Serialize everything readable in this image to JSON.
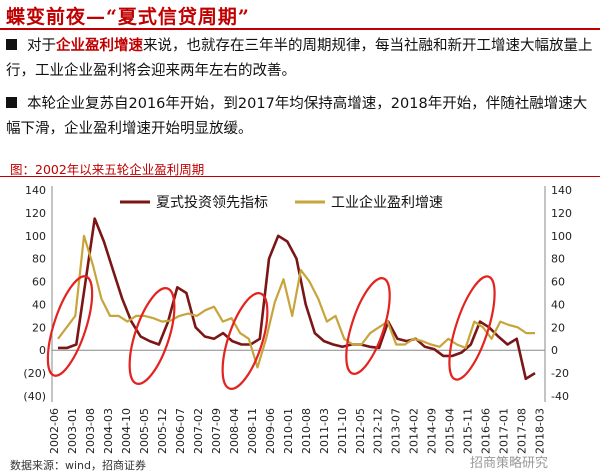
{
  "header": {
    "title": "蝶变前夜—“夏式信贷周期”"
  },
  "bullets": [
    {
      "segments": [
        {
          "text": "对于",
          "highlight": false
        },
        {
          "text": "企业盈利增速",
          "highlight": true
        },
        {
          "text": "来说，也就存在三年半的周期规律，每当社融和新开工增速大幅放量上行，工业企业盈利将会迎来两年左右的改善。",
          "highlight": false
        }
      ]
    },
    {
      "segments": [
        {
          "text": "本轮企业复苏自2016年开始，到2017年均保持高增速，2018年开始，伴随社融增速大幅下滑，企业盈利增速开始明显放缓。",
          "highlight": false
        }
      ]
    }
  ],
  "chart_caption": "图：2002年以来五轮企业盈利周期",
  "source": "数据来源：wind，招商证券",
  "watermark": "招商策略研究",
  "colors": {
    "accent": "#c00000",
    "series_xia": "#7b1616",
    "series_profit": "#c8a43c",
    "ellipse": "#e3231f"
  },
  "chart_data": {
    "type": "line",
    "title": "",
    "xlabel": "",
    "ylabel": "",
    "left_axis": {
      "range": [
        -40,
        140
      ],
      "tick_labels": [
        "140",
        "120",
        "100",
        "80",
        "60",
        "40",
        "20",
        "0",
        "(20)",
        "(40)"
      ]
    },
    "right_axis": {
      "range": [
        -40,
        140
      ],
      "tick_labels": [
        "140",
        "120",
        "100",
        "80",
        "60",
        "40",
        "20",
        "0",
        "-20",
        "-40"
      ]
    },
    "x_tick_labels": [
      "2002-06",
      "2003-01",
      "2003-08",
      "2004-03",
      "2004-10",
      "2005-05",
      "2005-12",
      "2006-07",
      "2007-02",
      "2007-09",
      "2008-04",
      "2008-11",
      "2009-06",
      "2010-01",
      "2010-08",
      "2011-03",
      "2011-10",
      "2012-05",
      "2012-12",
      "2013-07",
      "2014-02",
      "2014-09",
      "2015-04",
      "2015-11",
      "2016-06",
      "2017-01",
      "2017-08",
      "2018-03"
    ],
    "grid": false,
    "legend_position": "top",
    "series": [
      {
        "name": "夏式投资领先指标",
        "axis": "left",
        "values": [
          2,
          2,
          5,
          60,
          115,
          95,
          70,
          45,
          25,
          12,
          8,
          5,
          25,
          55,
          50,
          20,
          12,
          10,
          15,
          8,
          5,
          5,
          10,
          80,
          100,
          95,
          80,
          40,
          15,
          8,
          5,
          3,
          5,
          5,
          3,
          2,
          25,
          10,
          8,
          10,
          3,
          1,
          -5,
          -5,
          -2,
          5,
          25,
          20,
          12,
          5,
          10,
          -25,
          -20
        ]
      },
      {
        "name": "工业企业盈利增速",
        "axis": "right",
        "values": [
          10,
          20,
          30,
          100,
          75,
          45,
          30,
          30,
          25,
          30,
          30,
          28,
          25,
          26,
          30,
          32,
          30,
          35,
          38,
          25,
          28,
          15,
          10,
          -15,
          10,
          42,
          62,
          30,
          70,
          60,
          45,
          25,
          30,
          10,
          5,
          5,
          15,
          20,
          25,
          5,
          5,
          10,
          8,
          5,
          3,
          10,
          5,
          2,
          25,
          20,
          10,
          25,
          22,
          20,
          15,
          15
        ]
      }
    ]
  }
}
